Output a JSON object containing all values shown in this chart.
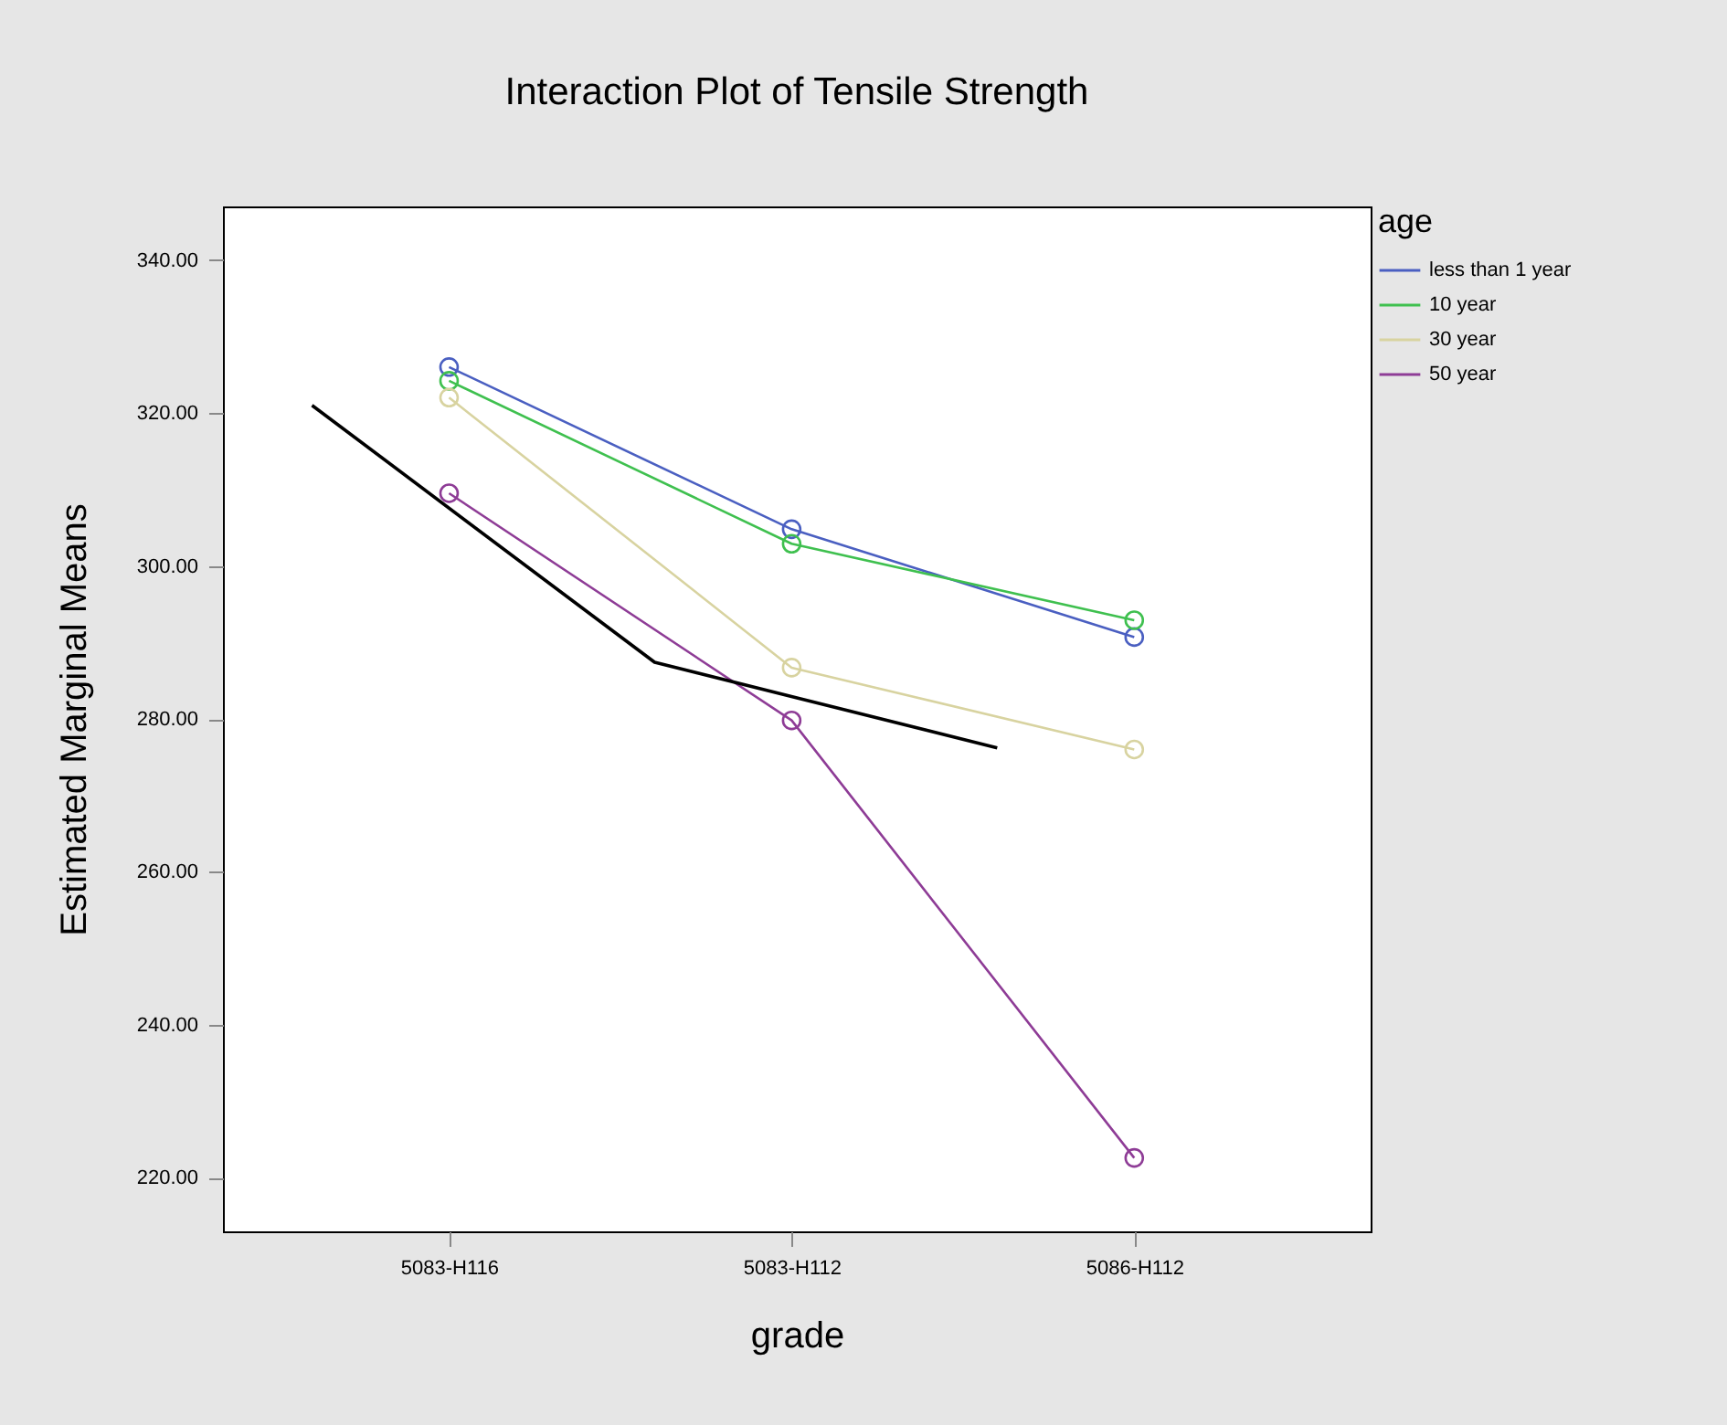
{
  "chart_data": {
    "type": "line",
    "title": "Interaction Plot of Tensile Strength",
    "xlabel": "grade",
    "ylabel": "Estimated Marginal Means",
    "legend_title": "age",
    "categories": [
      null,
      null,
      null,
      "5083-H116",
      null,
      null,
      null,
      null,
      "5083-H112",
      null,
      null,
      null,
      null,
      "5086-H112",
      null,
      null,
      null
    ],
    "series": [
      {
        "name": "less than 1 year",
        "color": "#4a5fc1",
        "values": [
          null,
          null,
          null,
          326.0,
          null,
          null,
          null,
          null,
          304.8,
          null,
          null,
          null,
          null,
          290.7,
          null,
          null,
          null
        ]
      },
      {
        "name": "10 year",
        "color": "#3fc04f",
        "values": [
          null,
          null,
          null,
          324.2,
          null,
          null,
          null,
          null,
          302.9,
          null,
          null,
          null,
          null,
          292.9,
          null,
          null,
          null
        ]
      },
      {
        "name": "30 year",
        "color": "#d8d3a0",
        "values": [
          null,
          null,
          null,
          322.0,
          null,
          null,
          null,
          null,
          286.7,
          null,
          null,
          null,
          null,
          276.0,
          null,
          null,
          null
        ]
      },
      {
        "name": "50 year",
        "color": "#8e3c96",
        "values": [
          null,
          null,
          null,
          309.5,
          null,
          null,
          null,
          null,
          279.8,
          null,
          null,
          null,
          null,
          222.6,
          null,
          null,
          null
        ]
      },
      {
        "color": "#000000",
        "marker": "none",
        "values": [
          null,
          321.0,
          null,
          null,
          null,
          null,
          287.4,
          null,
          null,
          null,
          null,
          276.2,
          null,
          null,
          null,
          null,
          null
        ]
      }
    ],
    "ylim": [
      213,
      347
    ],
    "yticks": [
      {
        "value": 220,
        "label": "220.00"
      },
      {
        "value": 240,
        "label": "240.00"
      },
      {
        "value": 260,
        "label": "260.00"
      },
      {
        "value": 280,
        "label": "280.00"
      },
      {
        "value": 300,
        "label": "300.00"
      },
      {
        "value": 320,
        "label": "320.00"
      },
      {
        "value": 340,
        "label": "340.00"
      }
    ],
    "marker": "circle",
    "grid": false,
    "legend": "top right"
  }
}
